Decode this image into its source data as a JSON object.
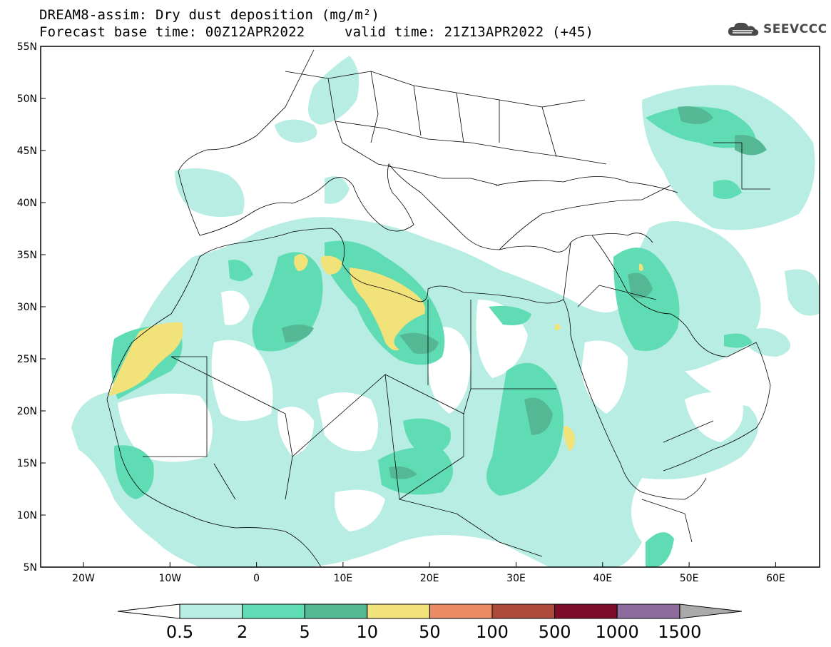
{
  "header": {
    "title_line1": "DREAM8-assim: Dry dust deposition (mg/m²)",
    "title_line2a": "Forecast base time: 00Z12APR2022",
    "title_line2b": "valid time: 21Z13APR2022 (+45)",
    "logo_text": "SEEVCCC",
    "logo_icon": "cloud-logo-icon"
  },
  "axes": {
    "lat_ticks": [
      "55N",
      "50N",
      "45N",
      "40N",
      "35N",
      "30N",
      "25N",
      "20N",
      "15N",
      "10N",
      "5N"
    ],
    "lon_ticks": [
      "20W",
      "10W",
      "0",
      "10E",
      "20E",
      "30E",
      "40E",
      "50E",
      "60E"
    ]
  },
  "colorbar": {
    "labels": [
      "0.5",
      "2",
      "5",
      "10",
      "50",
      "100",
      "500",
      "1000",
      "1500"
    ],
    "colors": [
      "#ffffff",
      "#b8ede3",
      "#5fdcb4",
      "#55b894",
      "#f2e27a",
      "#e98b65",
      "#ac4a3c",
      "#7e0b2a",
      "#8d6a9c",
      "#aaaaaa"
    ]
  },
  "colors": {
    "land": "#ffffff",
    "border": "#000000",
    "light": "#b8ede3",
    "mid": "#5fdcb4",
    "dark": "#55b894",
    "yellow": "#f2e27a"
  }
}
